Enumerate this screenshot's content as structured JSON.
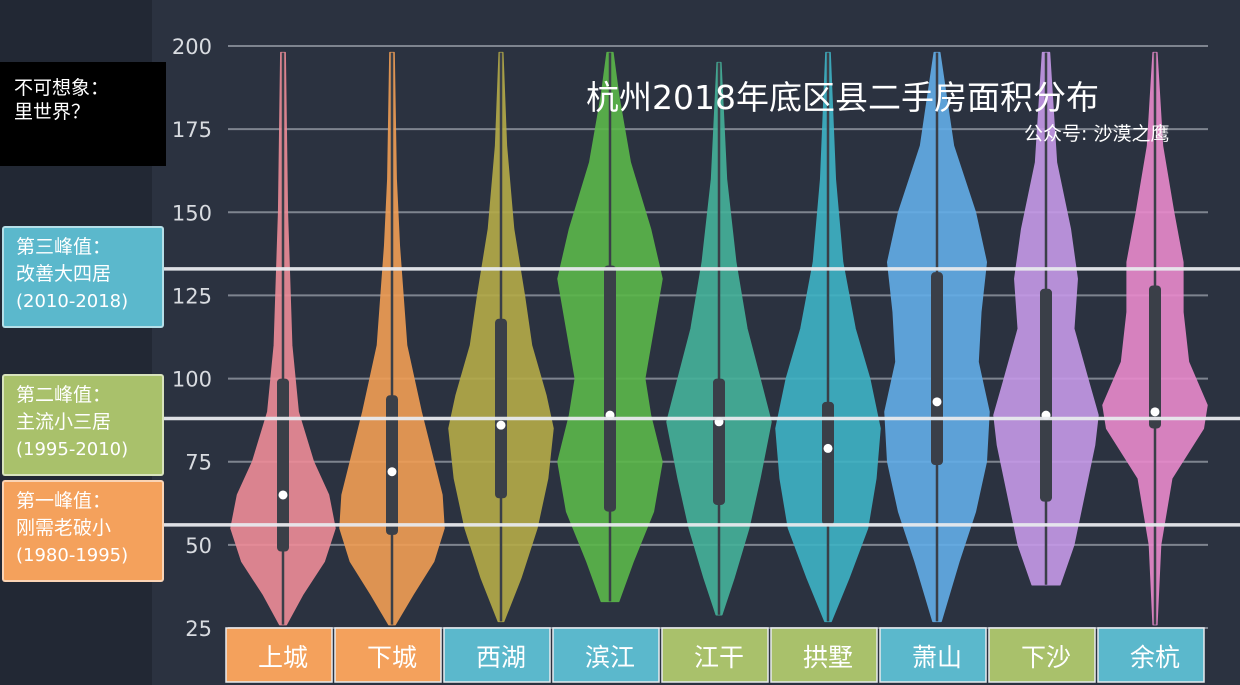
{
  "title": "杭州2018年底区县二手房面积分布",
  "subtitle": "公众号: 沙漠之鹰",
  "note": {
    "line1": "不可想象：",
    "line2": "里世界？"
  },
  "peaks": [
    {
      "line1": "第三峰值：",
      "line2": "改善大四居",
      "line3": "(2010-2018)",
      "value": 133,
      "color": "#5bb8cc"
    },
    {
      "line1": "第二峰值：",
      "line2": "主流小三居",
      "line3": "(1995-2010)",
      "value": 88,
      "color": "#a9c16b"
    },
    {
      "line1": "第一峰值：",
      "line2": "刚需老破小",
      "line3": "(1980-1995)",
      "value": 56,
      "color": "#f4a15c"
    }
  ],
  "chart_data": {
    "type": "violin",
    "yticks": [
      25,
      50,
      75,
      100,
      125,
      150,
      175,
      200
    ],
    "ylim": [
      25,
      200
    ],
    "grid": true,
    "categories": [
      {
        "name": "上城",
        "color": "#ee8c98",
        "label_bg": "#f4a15c",
        "median": 65,
        "q1": 48,
        "q3": 100,
        "min": 26,
        "max": 198,
        "profile": [
          [
            26,
            3
          ],
          [
            35,
            18
          ],
          [
            45,
            38
          ],
          [
            55,
            48
          ],
          [
            65,
            42
          ],
          [
            75,
            28
          ],
          [
            90,
            14
          ],
          [
            110,
            8
          ],
          [
            150,
            4
          ],
          [
            198,
            2
          ]
        ]
      },
      {
        "name": "下城",
        "color": "#f19e55",
        "label_bg": "#f4a15c",
        "median": 72,
        "q1": 53,
        "q3": 95,
        "min": 26,
        "max": 198,
        "profile": [
          [
            26,
            3
          ],
          [
            35,
            20
          ],
          [
            45,
            40
          ],
          [
            55,
            50
          ],
          [
            65,
            48
          ],
          [
            75,
            40
          ],
          [
            90,
            28
          ],
          [
            110,
            14
          ],
          [
            140,
            7
          ],
          [
            160,
            4
          ],
          [
            198,
            2
          ]
        ]
      },
      {
        "name": "西湖",
        "color": "#b5ab48",
        "label_bg": "#5bb8cc",
        "median": 86,
        "q1": 64,
        "q3": 118,
        "min": 27,
        "max": 198,
        "profile": [
          [
            27,
            3
          ],
          [
            40,
            22
          ],
          [
            55,
            40
          ],
          [
            70,
            52
          ],
          [
            85,
            58
          ],
          [
            95,
            50
          ],
          [
            110,
            34
          ],
          [
            125,
            26
          ],
          [
            145,
            14
          ],
          [
            170,
            6
          ],
          [
            198,
            2
          ]
        ]
      },
      {
        "name": "滨江",
        "color": "#5bb84a",
        "label_bg": "#5bb8cc",
        "median": 89,
        "q1": 60,
        "q3": 134,
        "min": 33,
        "max": 198,
        "profile": [
          [
            33,
            6
          ],
          [
            45,
            16
          ],
          [
            60,
            30
          ],
          [
            75,
            36
          ],
          [
            89,
            28
          ],
          [
            100,
            24
          ],
          [
            115,
            30
          ],
          [
            130,
            36
          ],
          [
            145,
            28
          ],
          [
            165,
            14
          ],
          [
            185,
            6
          ],
          [
            198,
            2
          ]
        ]
      },
      {
        "name": "江干",
        "color": "#45b29a",
        "label_bg": "#a9c16b",
        "median": 87,
        "q1": 62,
        "q3": 100,
        "min": 29,
        "max": 195,
        "profile": [
          [
            29,
            3
          ],
          [
            40,
            16
          ],
          [
            55,
            32
          ],
          [
            70,
            44
          ],
          [
            87,
            56
          ],
          [
            100,
            44
          ],
          [
            115,
            30
          ],
          [
            135,
            18
          ],
          [
            160,
            8
          ],
          [
            195,
            2
          ]
        ]
      },
      {
        "name": "拱墅",
        "color": "#3eb3c5",
        "label_bg": "#a9c16b",
        "median": 79,
        "q1": 56,
        "q3": 93,
        "min": 27,
        "max": 198,
        "profile": [
          [
            27,
            3
          ],
          [
            40,
            20
          ],
          [
            55,
            38
          ],
          [
            70,
            46
          ],
          [
            85,
            50
          ],
          [
            100,
            40
          ],
          [
            115,
            26
          ],
          [
            135,
            14
          ],
          [
            160,
            7
          ],
          [
            198,
            2
          ]
        ]
      },
      {
        "name": "萧山",
        "color": "#63aee8",
        "label_bg": "#5bb8cc",
        "median": 93,
        "q1": 74,
        "q3": 132,
        "min": 27,
        "max": 198,
        "profile": [
          [
            27,
            3
          ],
          [
            45,
            16
          ],
          [
            60,
            28
          ],
          [
            75,
            36
          ],
          [
            90,
            38
          ],
          [
            105,
            30
          ],
          [
            120,
            32
          ],
          [
            135,
            36
          ],
          [
            150,
            28
          ],
          [
            170,
            12
          ],
          [
            198,
            2
          ]
        ]
      },
      {
        "name": "下沙",
        "color": "#c69ae8",
        "label_bg": "#a9c16b",
        "median": 89,
        "q1": 63,
        "q3": 127,
        "min": 38,
        "max": 198,
        "profile": [
          [
            38,
            8
          ],
          [
            50,
            16
          ],
          [
            65,
            22
          ],
          [
            80,
            28
          ],
          [
            89,
            30
          ],
          [
            100,
            24
          ],
          [
            115,
            16
          ],
          [
            130,
            18
          ],
          [
            145,
            14
          ],
          [
            165,
            6
          ],
          [
            198,
            2
          ]
        ]
      },
      {
        "name": "余杭",
        "color": "#e98acc",
        "label_bg": "#5bb8cc",
        "median": 90,
        "q1": 85,
        "q3": 128,
        "min": 26,
        "max": 198,
        "profile": [
          [
            26,
            2
          ],
          [
            50,
            6
          ],
          [
            70,
            18
          ],
          [
            85,
            52
          ],
          [
            92,
            56
          ],
          [
            105,
            36
          ],
          [
            120,
            30
          ],
          [
            135,
            30
          ],
          [
            150,
            20
          ],
          [
            170,
            8
          ],
          [
            198,
            2
          ]
        ]
      }
    ]
  }
}
